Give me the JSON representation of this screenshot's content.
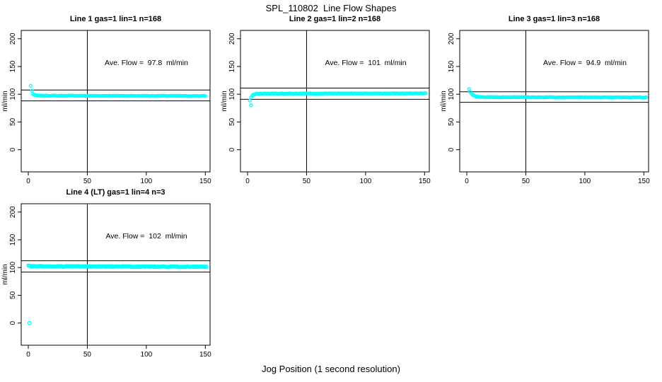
{
  "page": {
    "title": "SPL_110802  Line Flow Shapes",
    "xlabel": "Jog Position (1 second resolution)",
    "background": "#FFFFFF",
    "marker_color": "#00FFFF",
    "line_color": "#000000"
  },
  "chart_data": [
    {
      "type": "scatter",
      "title": "Line 1 gas=1 lin=1 n=168",
      "annotation": "Ave. Flow =  97.8  ml/min",
      "ave_flow": 97.8,
      "n": 168,
      "ylabel": "ml/min",
      "xlim": [
        -6,
        154
      ],
      "ylim": [
        -40,
        215
      ],
      "xticks": [
        0,
        50,
        100,
        150
      ],
      "yticks": [
        0,
        50,
        100,
        150,
        200
      ],
      "vline_x": 50,
      "hlines": [
        107.6,
        88.0
      ],
      "marker_r": 2.0,
      "band": {
        "x_start": 3,
        "x_end": 150,
        "start_y": 106,
        "flat_y": 97.4,
        "end_y": 96.8,
        "tau": 1.1,
        "jitter": 0.9,
        "seed": 7
      },
      "outliers": [
        [
          2,
          115
        ]
      ]
    },
    {
      "type": "scatter",
      "title": "Line 2 gas=1 lin=2 n=168",
      "annotation": "Ave. Flow =  101  ml/min",
      "ave_flow": 101,
      "n": 168,
      "ylabel": "ml/min",
      "xlim": [
        -6,
        154
      ],
      "ylim": [
        -40,
        215
      ],
      "xticks": [
        0,
        50,
        100,
        150
      ],
      "yticks": [
        0,
        50,
        100,
        150,
        200
      ],
      "vline_x": 50,
      "hlines": [
        111.1,
        90.9
      ],
      "marker_r": 2.0,
      "band": {
        "x_start": 2,
        "x_end": 151,
        "start_y": 88.5,
        "flat_y": 101.2,
        "end_y": 101.6,
        "tau": 1.6,
        "jitter": 0.8,
        "seed": 13
      },
      "outliers": [
        [
          3,
          80
        ]
      ]
    },
    {
      "type": "scatter",
      "title": "Line 3 gas=1 lin=3 n=168",
      "annotation": "Ave. Flow =  94.9  ml/min",
      "ave_flow": 94.9,
      "n": 168,
      "ylabel": "ml/min",
      "xlim": [
        -6,
        154
      ],
      "ylim": [
        -40,
        215
      ],
      "xticks": [
        0,
        50,
        100,
        150
      ],
      "yticks": [
        0,
        50,
        100,
        150,
        200
      ],
      "vline_x": 50,
      "hlines": [
        104.4,
        85.4
      ],
      "marker_r": 2.0,
      "band": {
        "x_start": 2,
        "x_end": 152,
        "start_y": 109,
        "flat_y": 94.8,
        "end_y": 94.2,
        "tau": 2.4,
        "jitter": 0.9,
        "seed": 21
      },
      "outliers": []
    },
    {
      "type": "scatter",
      "title": "Line 4 (LT) gas=1 lin=4 n=3",
      "annotation": "Ave. Flow =  102  ml/min",
      "ave_flow": 102,
      "n": 3,
      "ylabel": "ml/min",
      "xlim": [
        -6,
        154
      ],
      "ylim": [
        -40,
        215
      ],
      "xticks": [
        0,
        50,
        100,
        150
      ],
      "yticks": [
        0,
        50,
        100,
        150,
        200
      ],
      "vline_x": 50,
      "hlines": [
        112.2,
        91.8
      ],
      "marker_r": 2.3,
      "band": {
        "x_start": 0,
        "x_end": 151,
        "start_y": 103,
        "flat_y": 102.2,
        "end_y": 101.4,
        "tau": 1.5,
        "jitter": 1.3,
        "seed": 33
      },
      "outliers": [
        [
          1,
          0
        ]
      ]
    }
  ]
}
